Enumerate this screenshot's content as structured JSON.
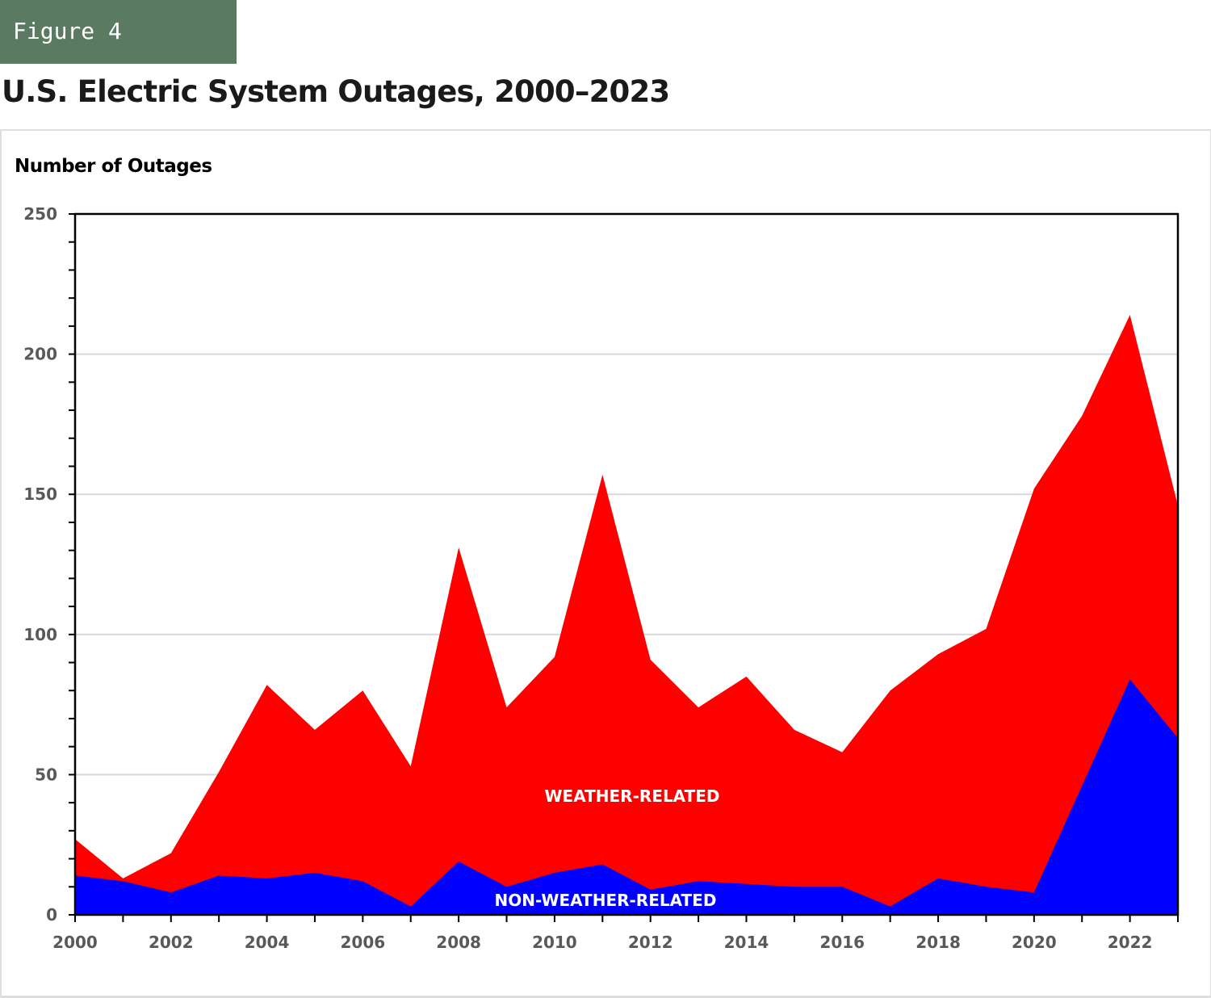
{
  "figure_tag": "Figure 4",
  "title": "U.S. Electric System Outages, 2000–2023",
  "colors": {
    "weather": "#ff0000",
    "non_weather": "#0000ff",
    "figure_tag_bg": "#5a7a62",
    "gridline": "#d9d9d9",
    "tick_label": "#595959"
  },
  "chart_data": {
    "type": "area",
    "stacked": true,
    "title": "U.S. Electric System Outages, 2000–2023",
    "xlabel": "",
    "ylabel": "Number of Outages",
    "x": [
      2000,
      2001,
      2002,
      2003,
      2004,
      2005,
      2006,
      2007,
      2008,
      2009,
      2010,
      2011,
      2012,
      2013,
      2014,
      2015,
      2016,
      2017,
      2018,
      2019,
      2020,
      2021,
      2022,
      2023
    ],
    "xticks": [
      "2000",
      "2002",
      "2004",
      "2006",
      "2008",
      "2010",
      "2012",
      "2014",
      "2016",
      "2018",
      "2020",
      "2022"
    ],
    "ylim": [
      0,
      250
    ],
    "yticks": [
      0,
      50,
      100,
      150,
      200,
      250
    ],
    "y_minor_step": 10,
    "grid": true,
    "series": [
      {
        "name": "NON-WEATHER-RELATED",
        "values": [
          14,
          12,
          8,
          14,
          13,
          15,
          12,
          3,
          19,
          10,
          15,
          18,
          9,
          12,
          11,
          10,
          10,
          3,
          13,
          10,
          8,
          46,
          84,
          63
        ]
      },
      {
        "name": "WEATHER-RELATED",
        "values": [
          13,
          1,
          14,
          37,
          69,
          51,
          68,
          50,
          112,
          64,
          77,
          139,
          82,
          62,
          74,
          56,
          48,
          77,
          80,
          92,
          144,
          132,
          130,
          83
        ]
      }
    ],
    "totals": [
      27,
      13,
      22,
      51,
      82,
      66,
      80,
      53,
      131,
      74,
      92,
      157,
      91,
      74,
      85,
      66,
      58,
      80,
      93,
      102,
      152,
      178,
      214,
      146
    ],
    "annotations": [
      "WEATHER-RELATED",
      "NON-WEATHER-RELATED"
    ]
  }
}
